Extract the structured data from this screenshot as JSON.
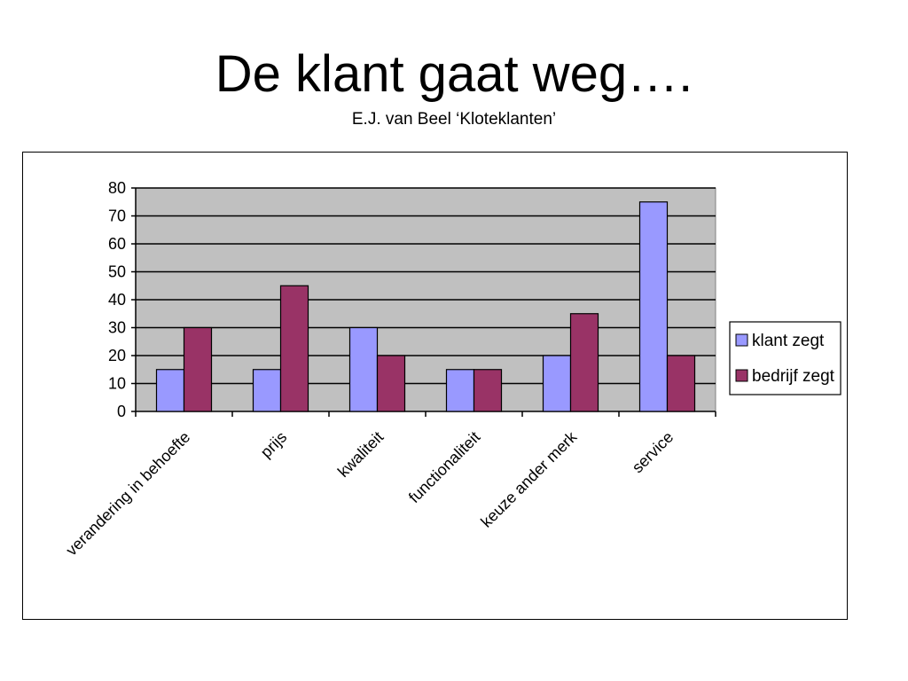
{
  "slide": {
    "title": "De klant gaat weg….",
    "subtitle": "E.J. van Beel ‘Kloteklanten’"
  },
  "chart_data": {
    "type": "bar",
    "categories": [
      "verandering in behoefte",
      "prijs",
      "kwaliteit",
      "functionaliteit",
      "keuze ander merk",
      "service"
    ],
    "series": [
      {
        "name": "klant zegt",
        "values": [
          15,
          15,
          30,
          15,
          20,
          75
        ],
        "color": "#9999ff"
      },
      {
        "name": "bedrijf zegt",
        "values": [
          30,
          45,
          20,
          15,
          35,
          20
        ],
        "color": "#993366"
      }
    ],
    "ylim": [
      0,
      80
    ],
    "yticks": [
      0,
      10,
      20,
      30,
      40,
      50,
      60,
      70,
      80
    ],
    "grid": true,
    "plot_background": "#c0c0c0",
    "legend_position": "right"
  }
}
